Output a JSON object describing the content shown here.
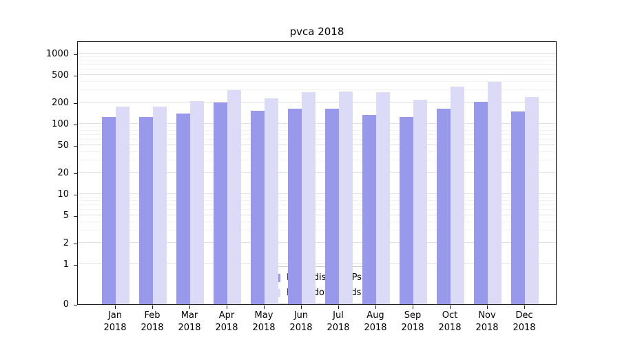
{
  "title": "pvca 2018",
  "chart_data": {
    "type": "bar",
    "title": "pvca 2018",
    "categories": [
      "Jan",
      "Feb",
      "Mar",
      "Apr",
      "May",
      "Jun",
      "Jul",
      "Aug",
      "Sep",
      "Oct",
      "Nov",
      "Dec"
    ],
    "year": "2018",
    "series": [
      {
        "name": "Nb of distinct IPs",
        "color": "#9999ec",
        "values": [
          125,
          125,
          140,
          200,
          155,
          165,
          165,
          135,
          125,
          165,
          205,
          150
        ]
      },
      {
        "name": "Nb of downloads",
        "color": "#dbdbf8",
        "values": [
          175,
          175,
          210,
          300,
          230,
          280,
          290,
          280,
          220,
          340,
          400,
          240
        ]
      }
    ],
    "yticks": [
      0,
      1,
      2,
      5,
      10,
      20,
      50,
      100,
      200,
      500,
      1000
    ],
    "yscale": "symlog",
    "ylim": [
      0,
      1000
    ],
    "xlabel": "",
    "ylabel": "",
    "grid": true,
    "legend_position": "lower center"
  }
}
